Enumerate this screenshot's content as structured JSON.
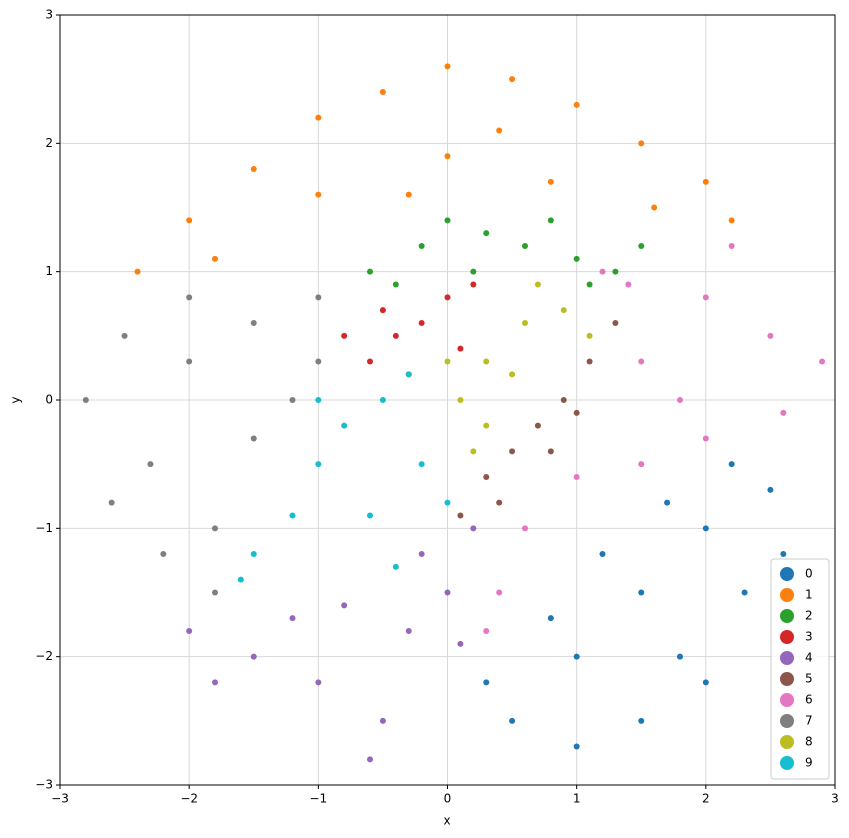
{
  "chart_data": {
    "type": "scatter",
    "xlabel": "x",
    "ylabel": "y",
    "xlim": [
      -3,
      3
    ],
    "ylim": [
      -3,
      3
    ],
    "xticks": [
      {
        "value": -3,
        "label": "−3"
      },
      {
        "value": -2,
        "label": "−2"
      },
      {
        "value": -1,
        "label": "−1"
      },
      0,
      1,
      2,
      3
    ],
    "yticks": [
      {
        "value": -3,
        "label": "−3"
      },
      {
        "value": -2,
        "label": "−2"
      },
      {
        "value": -1,
        "label": "−1"
      },
      0,
      1,
      2,
      3
    ],
    "grid": true,
    "legend": "lower right",
    "series": [
      {
        "name": "0",
        "color": "#1f77b4",
        "x": [
          1.5,
          2,
          2.5,
          1,
          0.5,
          1.8,
          2.3,
          1.2,
          0.8,
          1.5,
          2.6,
          0.3,
          1,
          2,
          1.7,
          2.2
        ],
        "values": [
          -1.5,
          -1,
          -0.7,
          -2,
          -2.5,
          -2,
          -1.5,
          -1.2,
          -1.7,
          -2.5,
          -1.2,
          -2.2,
          -2.7,
          -2.2,
          -0.8,
          -0.5
        ]
      },
      {
        "name": "1",
        "color": "#ff7f0e",
        "x": [
          -2.4,
          -2,
          -1.5,
          -1,
          -0.5,
          0,
          0.5,
          1,
          1.5,
          2,
          2.2,
          -1.8,
          -1,
          0,
          0.8,
          1.6,
          -0.3,
          0.4
        ],
        "values": [
          1,
          1.4,
          1.8,
          2.2,
          2.4,
          2.6,
          2.5,
          2.3,
          2,
          1.7,
          1.4,
          1.1,
          1.6,
          1.9,
          1.7,
          1.5,
          1.6,
          2.1
        ]
      },
      {
        "name": "2",
        "color": "#2ca02c",
        "x": [
          -0.6,
          -0.2,
          0,
          0.3,
          0.6,
          1,
          1.3,
          1.5,
          0.2,
          -0.4,
          0.8,
          1.1
        ],
        "values": [
          1,
          1.2,
          1.4,
          1.3,
          1.2,
          1.1,
          1,
          1.2,
          1,
          0.9,
          1.4,
          0.9
        ]
      },
      {
        "name": "3",
        "color": "#d62728",
        "x": [
          -0.8,
          -0.5,
          -0.2,
          0,
          -0.6,
          -0.3,
          0.2,
          -0.4,
          0.1
        ],
        "values": [
          0.5,
          0.7,
          0.6,
          0.8,
          0.3,
          0.2,
          0.9,
          0.5,
          0.4
        ]
      },
      {
        "name": "4",
        "color": "#9467bd",
        "x": [
          -2,
          -1.5,
          -1,
          -0.5,
          -0.3,
          0,
          0.2,
          -0.8,
          -1.2,
          -0.6,
          -1.8,
          0.1,
          -0.2
        ],
        "values": [
          -1.8,
          -2,
          -2.2,
          -2.5,
          -1.8,
          -1.5,
          -1,
          -1.6,
          -1.7,
          -2.8,
          -2.2,
          -1.9,
          -1.2
        ]
      },
      {
        "name": "5",
        "color": "#8c564b",
        "x": [
          0.1,
          0.3,
          0.5,
          0.7,
          0.9,
          1.1,
          1.3,
          0.4,
          0.8,
          1
        ],
        "values": [
          -0.9,
          -0.6,
          -0.4,
          -0.2,
          0,
          0.3,
          0.6,
          -0.8,
          -0.4,
          -0.1
        ]
      },
      {
        "name": "6",
        "color": "#e377c2",
        "x": [
          1.5,
          2,
          2.5,
          2.9,
          2,
          1.5,
          1.2,
          2.2,
          1,
          0.6,
          0.4,
          2.6,
          1.8,
          1.4,
          0.3
        ],
        "values": [
          0.3,
          0.8,
          0.5,
          0.3,
          -0.3,
          -0.5,
          1,
          1.2,
          -0.6,
          -1,
          -1.5,
          -0.1,
          0,
          0.9,
          -1.8
        ]
      },
      {
        "name": "7",
        "color": "#7f7f7f",
        "x": [
          -2.8,
          -2.5,
          -2.3,
          -2,
          -1.8,
          -1.5,
          -1.2,
          -1,
          -2.6,
          -1.8,
          -2.2,
          -1.5,
          -1,
          -2
        ],
        "values": [
          0,
          0.5,
          -0.5,
          0.3,
          -1,
          0.6,
          0,
          0.8,
          -0.8,
          -1.5,
          -1.2,
          -0.3,
          0.3,
          0.8
        ]
      },
      {
        "name": "8",
        "color": "#bcbd22",
        "x": [
          0.1,
          0.3,
          0.6,
          0.9,
          0.2,
          0.5,
          1.1,
          0,
          0.7,
          0.3
        ],
        "values": [
          0,
          0.3,
          0.6,
          0.7,
          -0.4,
          0.2,
          0.5,
          0.3,
          0.9,
          -0.2
        ]
      },
      {
        "name": "9",
        "color": "#17becf",
        "x": [
          -1.5,
          -1,
          -0.5,
          -0.2,
          -0.8,
          -1.2,
          -0.6,
          -1.6,
          -0.4,
          0,
          -1,
          -0.3
        ],
        "values": [
          -1.2,
          -0.5,
          0,
          -0.5,
          -0.2,
          -0.9,
          -0.9,
          -1.4,
          -1.3,
          -0.8,
          0,
          0.2
        ]
      }
    ]
  }
}
